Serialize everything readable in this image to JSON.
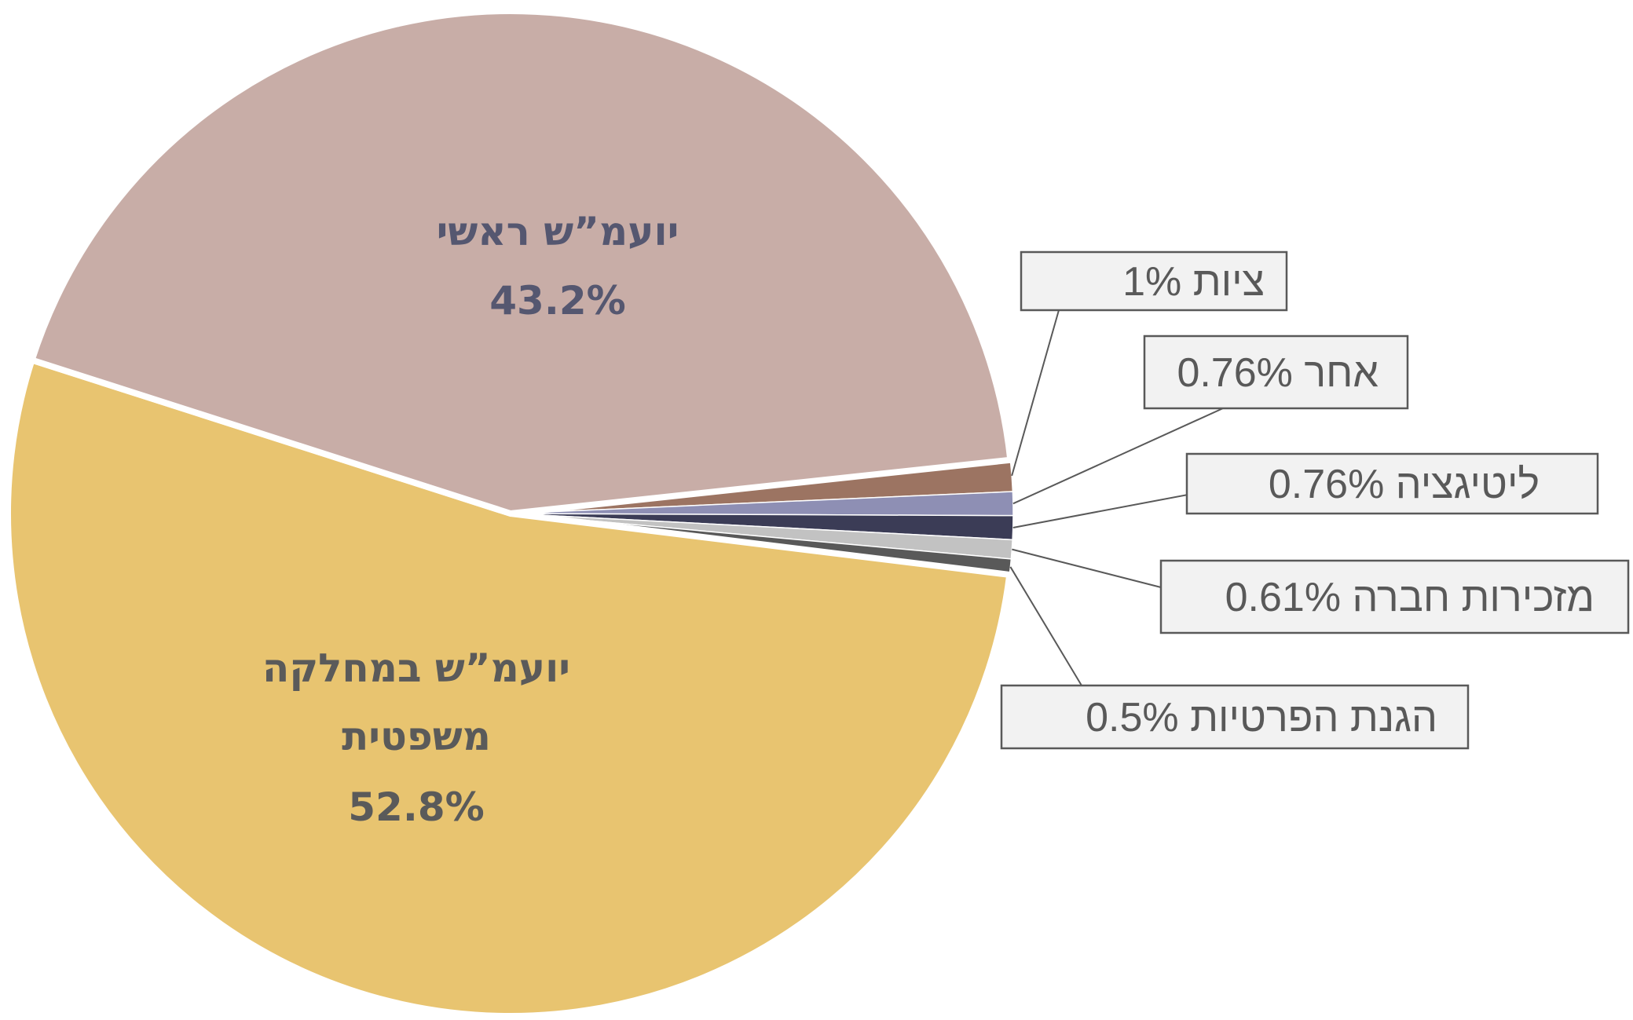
{
  "chart_data": {
    "type": "pie",
    "slices": [
      {
        "label": "ציות",
        "value": 1,
        "display": "ציות 1%",
        "color": "#9c7462"
      },
      {
        "label": "אחר",
        "value": 0.76,
        "display": "אחר 0.76%",
        "color": "#8e8fb4"
      },
      {
        "label": "ליטיגציה",
        "value": 0.76,
        "display": "ליטיגציה 0.76%",
        "color": "#3b3c56"
      },
      {
        "label": "מזכירות חברה",
        "value": 0.61,
        "display": "מזכירות חברה 0.61%",
        "color": "#c2c2c2"
      },
      {
        "label": "הגנת הפרטיות",
        "value": 0.5,
        "display": "הגנת הפרטיות 0.5%",
        "color": "#595959"
      },
      {
        "label": "יועמ\"ש במחלקה משפטית",
        "value": 52.8,
        "display_lines": [
          "יועמ”ש במחלקה",
          "משפטית",
          "52.8%"
        ],
        "color": "#e8c470",
        "text_color": "#5a5a5a"
      },
      {
        "label": "יועמ\"ש ראשי",
        "value": 43.2,
        "display_lines": [
          "יועמ”ש ראשי",
          "43.2%"
        ],
        "color": "#c8ada7",
        "text_color": "#555770"
      }
    ]
  }
}
